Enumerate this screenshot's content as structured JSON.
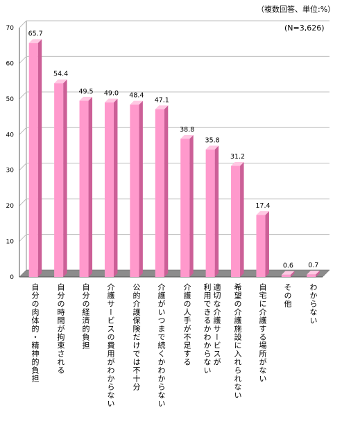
{
  "unit_note": "（複数回答、単位:%）",
  "chart_data": {
    "type": "bar",
    "n_note": "(N=3,626)",
    "categories": [
      "自分の肉体的・精神的負担",
      "自分の時間が拘束される",
      "自分の経済的負担",
      "介護サービスの費用がわからない",
      "公的介護保険だけでは不十分",
      "介護がいつまで続くかわからない",
      "介護の人手が不足する",
      "適切な介護サービスが\n利用できるかわからない",
      "希望の介護施設に入れられない",
      "自宅に介護する場所がない",
      "その他",
      "わからない"
    ],
    "values": [
      65.7,
      54.4,
      49.5,
      49.0,
      48.4,
      47.1,
      38.8,
      35.8,
      31.2,
      17.4,
      0.6,
      0.7
    ],
    "value_labels": [
      "65.7",
      "54.4",
      "49.5",
      "49.0",
      "48.4",
      "47.1",
      "38.8",
      "35.8",
      "31.2",
      "17.4",
      "0.6",
      "0.7"
    ],
    "yticks": [
      "0",
      "10",
      "20",
      "30",
      "40",
      "50",
      "60",
      "70"
    ],
    "ylim": [
      0,
      70
    ],
    "grid": true,
    "colors": {
      "bar_front": "#ff99cc",
      "bar_side": "#cc5f97",
      "bar_top": "#ffc8e3",
      "floor": "#8c8c8c",
      "grid": "#bdbdbd"
    }
  }
}
